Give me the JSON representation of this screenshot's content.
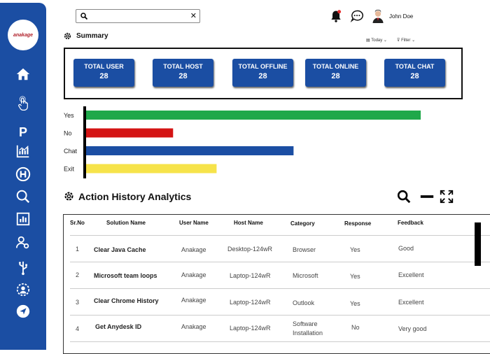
{
  "app": {
    "logo_text": "anakage"
  },
  "search": {
    "placeholder": "",
    "value": ""
  },
  "user": {
    "name": "John Doe"
  },
  "summary": {
    "title": "Summary",
    "today_label": "Today",
    "filter_label": "Filter",
    "cards": [
      {
        "label": "TOTAL USER",
        "value": "28"
      },
      {
        "label": "TOTAL HOST",
        "value": "28"
      },
      {
        "label": "TOTAL OFFLINE",
        "value": "28"
      },
      {
        "label": "TOTAL ONLINE",
        "value": "28"
      },
      {
        "label": "TOTAL CHAT",
        "value": "28"
      }
    ]
  },
  "chart_data": {
    "type": "bar",
    "orientation": "horizontal",
    "categories": [
      "Yes",
      "No",
      "Chat",
      "Exit"
    ],
    "values": [
      100,
      26,
      62,
      39
    ],
    "colors": [
      "#1fa84a",
      "#d41414",
      "#1b4ea3",
      "#f6e34a"
    ],
    "title": "",
    "xlabel": "",
    "ylabel": "",
    "xlim": [
      0,
      100
    ],
    "grid": false
  },
  "action_history": {
    "title": "Action History Analytics",
    "columns": [
      "Sr.No",
      "Solution Name",
      "User Name",
      "Host Name",
      "Category",
      "Response",
      "Feedback"
    ],
    "rows": [
      {
        "sr": "1",
        "solution": "Clear Java Cache",
        "user": "Anakage",
        "host": "Desktop-124wR",
        "category": "Browser",
        "category2": "",
        "response": "Yes",
        "feedback": "Good"
      },
      {
        "sr": "2",
        "solution": "Microsoft team loops",
        "user": "Anakage",
        "host": "Laptop-124wR",
        "category": "Microsoft",
        "category2": "",
        "response": "Yes",
        "feedback": "Excellent"
      },
      {
        "sr": "3",
        "solution": "Clear Chrome History",
        "user": "Anakage",
        "host": "Laptop-124wR",
        "category": "Outlook",
        "category2": "",
        "response": "Yes",
        "feedback": "Excellent"
      },
      {
        "sr": "4",
        "solution": "Get Anydesk ID",
        "user": "Anakage",
        "host": "Laptop-124wR",
        "category": "Software",
        "category2": "Installation",
        "response": "No",
        "feedback": "Very good"
      }
    ]
  }
}
